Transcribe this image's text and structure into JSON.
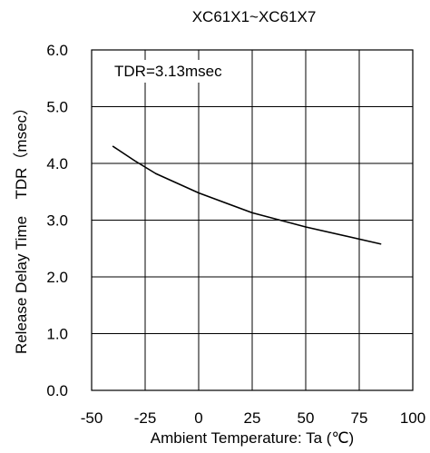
{
  "chart_data": {
    "type": "line",
    "title": "XC61X1~XC61X7",
    "xlabel": "Ambient Temperature: Ta (℃)",
    "ylabel": "Release Delay Time",
    "ylabel_unit": "TDR（msec）",
    "xlim": [
      -50,
      100
    ],
    "ylim": [
      0,
      6
    ],
    "xticks": [
      -50,
      -25,
      0,
      25,
      50,
      75,
      100
    ],
    "xtick_labels": [
      "-50",
      "-25",
      "0",
      "25",
      "50",
      "75",
      "100"
    ],
    "yticks": [
      0,
      1,
      2,
      3,
      4,
      5,
      6
    ],
    "ytick_labels": [
      "0.0",
      "1.0",
      "2.0",
      "3.0",
      "4.0",
      "5.0",
      "6.0"
    ],
    "grid": true,
    "annotation": "TDR=3.13msec",
    "series": [
      {
        "x": [
          -40,
          -30,
          -20,
          0,
          25,
          50,
          85
        ],
        "y": [
          4.3,
          4.05,
          3.82,
          3.48,
          3.13,
          2.88,
          2.58
        ]
      }
    ],
    "colors": {
      "line": "#000000",
      "grid": "#000000",
      "background": "#ffffff"
    }
  }
}
